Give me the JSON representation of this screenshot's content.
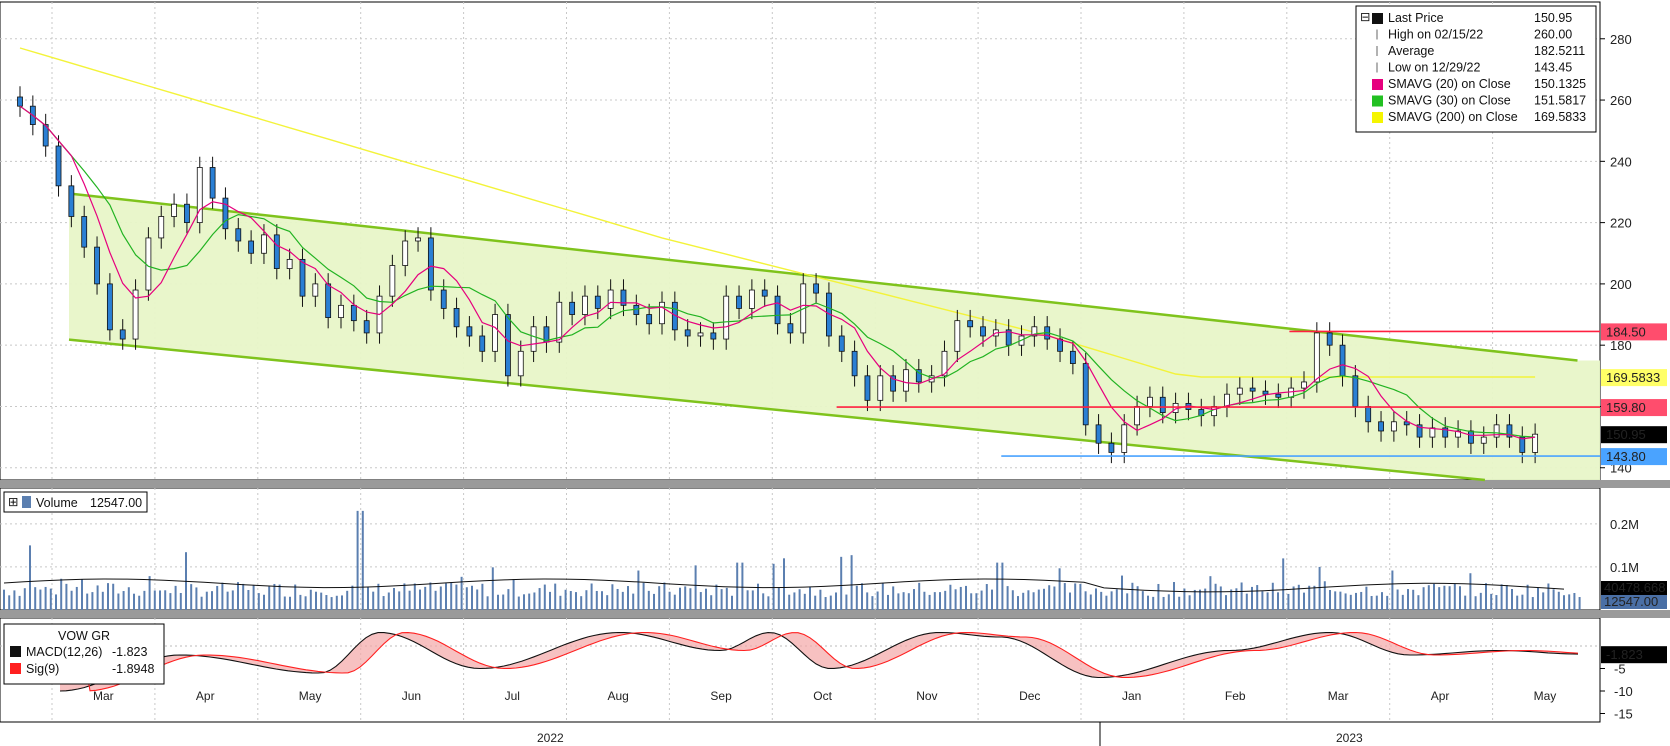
{
  "chart_data": {
    "type": "candlestick",
    "ticker": "VOW GR",
    "x_months": [
      "Mar",
      "Apr",
      "May",
      "Jun",
      "Jul",
      "Aug",
      "Sep",
      "Oct",
      "Nov",
      "Dec",
      "Jan",
      "Feb",
      "Mar",
      "Apr",
      "May"
    ],
    "x_years": [
      "2022",
      "2023"
    ],
    "price_axis": {
      "ticks": [
        "280",
        "260",
        "240",
        "220",
        "200",
        "180",
        "160",
        "140"
      ],
      "ylim": [
        136,
        292
      ]
    },
    "legend": [
      {
        "label": "Last Price",
        "value": "150.95",
        "color": "#111111",
        "marker": "square"
      },
      {
        "label": "High on 02/15/22",
        "value": "260.00",
        "color": "#555555",
        "marker": "high"
      },
      {
        "label": "Average",
        "value": "182.5211",
        "color": "#555555",
        "marker": "avg"
      },
      {
        "label": "Low on 12/29/22",
        "value": "143.45",
        "color": "#555555",
        "marker": "low"
      },
      {
        "label": "SMAVG (20)  on Close",
        "value": "150.1325",
        "color": "#e6007e",
        "marker": "square"
      },
      {
        "label": "SMAVG (30)  on Close",
        "value": "151.5817",
        "color": "#22c022",
        "marker": "square"
      },
      {
        "label": "SMAVG (200)  on Close",
        "value": "169.5833",
        "color": "#f5f500",
        "marker": "square"
      }
    ],
    "price_tags": [
      {
        "value": "184.50",
        "price": 184.5,
        "bg": "#ff4d6d",
        "fg": "#000000"
      },
      {
        "value": "169.5833",
        "price": 169.58,
        "bg": "#ffff66",
        "fg": "#000000"
      },
      {
        "value": "159.80",
        "price": 159.8,
        "bg": "#ff4d6d",
        "fg": "#000000"
      },
      {
        "value": "150.95",
        "price": 150.95,
        "bg": "#000000",
        "fg": "#ffffff"
      },
      {
        "value": "143.80",
        "price": 143.8,
        "bg": "#4aa3ff",
        "fg": "#000000"
      }
    ],
    "levels": [
      {
        "price": 184.5,
        "from_month": 12.2,
        "color": "#ff2040"
      },
      {
        "price": 159.8,
        "from_month": 7.8,
        "color": "#ff2040"
      },
      {
        "price": 143.8,
        "from_month": 9.4,
        "color": "#4aa3ff"
      }
    ],
    "channel": {
      "upper_start": [
        0,
        229.5
      ],
      "upper_end": [
        15.0,
        175.0
      ],
      "lower_start": [
        0,
        181.8
      ],
      "lower_end": [
        14.1,
        136.0
      ]
    },
    "close_series_approx": [
      [
        0,
        258
      ],
      [
        0.2,
        252
      ],
      [
        0.4,
        245
      ],
      [
        0.6,
        232
      ],
      [
        0.8,
        222
      ],
      [
        1.0,
        212
      ],
      [
        1.2,
        200
      ],
      [
        1.4,
        185
      ],
      [
        1.6,
        182
      ],
      [
        1.8,
        198
      ],
      [
        2.0,
        215
      ],
      [
        2.2,
        222
      ],
      [
        2.4,
        226
      ],
      [
        2.6,
        220
      ],
      [
        2.8,
        238
      ],
      [
        3.0,
        228
      ],
      [
        3.2,
        218
      ],
      [
        3.4,
        214
      ],
      [
        3.6,
        210
      ],
      [
        3.8,
        216
      ],
      [
        4.0,
        205
      ],
      [
        4.2,
        208
      ],
      [
        4.4,
        196
      ],
      [
        4.6,
        200
      ],
      [
        4.8,
        189
      ],
      [
        5.0,
        193
      ],
      [
        5.2,
        188
      ],
      [
        5.4,
        184
      ],
      [
        5.6,
        196
      ],
      [
        5.8,
        206
      ],
      [
        6.0,
        214
      ],
      [
        6.2,
        215
      ],
      [
        6.4,
        198
      ],
      [
        6.6,
        192
      ],
      [
        6.8,
        186
      ],
      [
        7.0,
        183
      ],
      [
        7.2,
        178
      ],
      [
        7.4,
        190
      ],
      [
        7.6,
        170
      ],
      [
        7.8,
        178
      ],
      [
        8.0,
        186
      ],
      [
        8.2,
        181
      ],
      [
        8.4,
        194
      ],
      [
        8.6,
        190
      ],
      [
        8.8,
        196
      ],
      [
        9.0,
        192
      ],
      [
        9.2,
        198
      ],
      [
        9.4,
        193
      ],
      [
        9.6,
        190
      ],
      [
        9.8,
        187
      ],
      [
        10.0,
        194
      ],
      [
        10.2,
        185
      ],
      [
        10.4,
        183
      ],
      [
        10.6,
        184
      ],
      [
        10.8,
        182
      ],
      [
        11.0,
        196
      ],
      [
        11.2,
        192
      ],
      [
        11.4,
        198
      ],
      [
        11.6,
        196
      ],
      [
        11.8,
        187
      ],
      [
        12.0,
        184
      ],
      [
        12.2,
        200
      ],
      [
        12.4,
        197
      ],
      [
        12.6,
        183
      ],
      [
        12.8,
        178
      ],
      [
        13.0,
        170
      ],
      [
        13.2,
        162
      ],
      [
        13.4,
        170
      ],
      [
        13.6,
        165
      ],
      [
        13.8,
        172
      ],
      [
        14.0,
        168
      ],
      [
        14.2,
        170
      ],
      [
        14.4,
        178
      ],
      [
        14.6,
        188
      ],
      [
        14.8,
        186
      ],
      [
        15.0,
        183
      ],
      [
        15.2,
        185
      ],
      [
        15.4,
        180
      ],
      [
        15.6,
        183
      ],
      [
        15.8,
        186
      ],
      [
        16.0,
        182
      ],
      [
        16.2,
        178
      ],
      [
        16.4,
        174
      ],
      [
        16.6,
        154
      ],
      [
        16.8,
        148
      ],
      [
        17.0,
        145
      ],
      [
        17.2,
        154
      ],
      [
        17.4,
        160
      ],
      [
        17.6,
        163
      ],
      [
        17.8,
        158
      ],
      [
        18.0,
        161
      ],
      [
        18.2,
        159
      ],
      [
        18.4,
        157
      ],
      [
        18.6,
        160
      ],
      [
        18.8,
        164
      ],
      [
        19.0,
        166
      ],
      [
        19.2,
        165
      ],
      [
        19.4,
        164
      ],
      [
        19.6,
        163
      ],
      [
        19.8,
        166
      ],
      [
        20.0,
        168
      ],
      [
        20.2,
        184
      ],
      [
        20.4,
        180
      ],
      [
        20.6,
        170
      ],
      [
        20.8,
        160
      ],
      [
        21.0,
        155
      ],
      [
        21.2,
        152
      ],
      [
        21.4,
        155
      ],
      [
        21.6,
        154
      ],
      [
        21.8,
        150
      ],
      [
        22.0,
        153
      ],
      [
        22.2,
        150
      ],
      [
        22.4,
        152
      ],
      [
        22.6,
        148
      ],
      [
        22.8,
        150
      ],
      [
        23.0,
        154
      ],
      [
        23.2,
        150
      ],
      [
        23.4,
        145
      ],
      [
        23.6,
        150.95
      ]
    ],
    "volume_panel": {
      "title": "Volume",
      "value": "12547.00",
      "ticks": [
        "0.2M",
        "0.1M"
      ],
      "tags": [
        {
          "value": "40478.668",
          "bg": "#000000",
          "fg": "#ffffff"
        },
        {
          "value": "12547.00",
          "bg": "#4a6fa5",
          "fg": "#ffffff"
        }
      ]
    },
    "macd_panel": {
      "title": "VOW GR",
      "series": [
        {
          "label": "MACD(12,26)",
          "value": "-1.823",
          "color": "#111111"
        },
        {
          "label": "Sig(9)",
          "value": "-1.8948",
          "color": "#ff2020"
        }
      ],
      "ticks": [
        "-5",
        "-10",
        "-15"
      ],
      "tag": {
        "value": "-1.823",
        "bg": "#000000",
        "fg": "#ffffff"
      }
    }
  }
}
